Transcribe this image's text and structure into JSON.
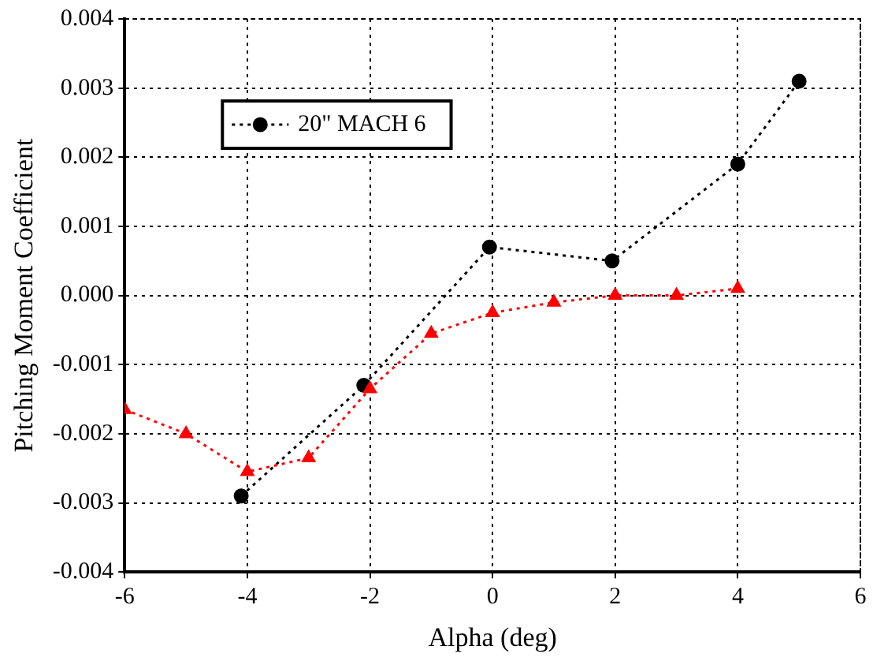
{
  "chart_data": {
    "type": "line",
    "xlabel": "Alpha (deg)",
    "ylabel": "Pitching Moment Coefficient",
    "xlim": [
      -6,
      6
    ],
    "xticks": [
      -6,
      -4,
      -2,
      0,
      2,
      4,
      6
    ],
    "ylim": [
      -0.004,
      0.004
    ],
    "yticks": [
      -0.004,
      -0.003,
      -0.002,
      -0.001,
      {
        "value": 0,
        "label": "0.000"
      },
      0.001,
      0.002,
      0.003,
      0.004
    ],
    "grid": true,
    "legend": "top left",
    "line_style": "dotted",
    "series": [
      {
        "name": "20\" MACH 6",
        "color": "#000000",
        "marker": "circle",
        "x": [
          -4.1,
          -2.1,
          -0.05,
          1.95,
          4,
          5
        ],
        "values": [
          -0.0029,
          -0.0013,
          0.0007,
          0.0005,
          0.0019,
          0.0031
        ]
      },
      {
        "color": "#ff0000",
        "marker": "triangle",
        "x": [
          -6,
          -5,
          -4,
          -3,
          -2,
          -1,
          0,
          1,
          2,
          3,
          4
        ],
        "values": [
          -0.00165,
          -0.002,
          -0.00255,
          -0.00235,
          -0.00135,
          -0.00055,
          -0.00025,
          -0.0001,
          0,
          0,
          0.0001
        ]
      }
    ]
  }
}
